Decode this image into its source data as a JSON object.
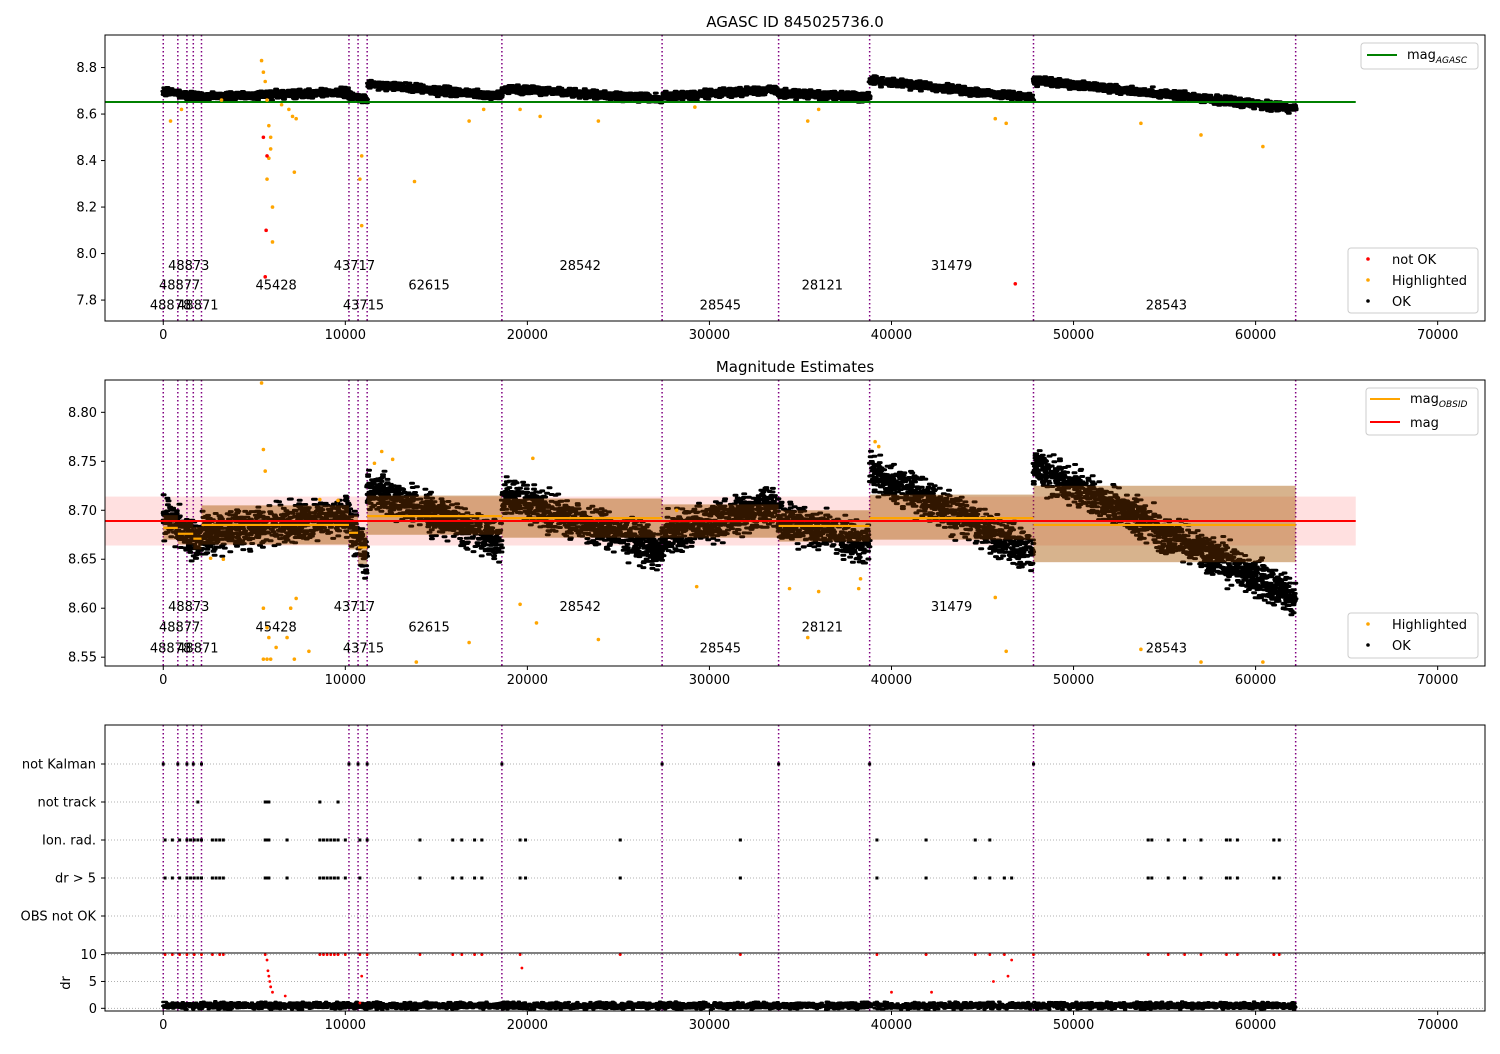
{
  "chart_data": [
    {
      "type": "scatter",
      "title": "AGASC ID 845025736.0",
      "xlim": [
        -3200,
        72600
      ],
      "ylim": [
        7.71,
        8.94
      ],
      "x_ticks": [
        0,
        10000,
        20000,
        30000,
        40000,
        50000,
        60000,
        70000
      ],
      "y_ticks": [
        7.8,
        8.0,
        8.2,
        8.4,
        8.6,
        8.8
      ],
      "mag_agasc": 8.652,
      "mag_agasc_xrange": [
        -3200,
        65500
      ],
      "obs_boundaries": [
        0,
        800,
        1300,
        1650,
        2100,
        10200,
        10700,
        11200,
        18600,
        27400,
        33800,
        38800,
        47800,
        62200
      ],
      "obsid_labels": [
        {
          "text": "48873",
          "x": 1400,
          "y": 7.93
        },
        {
          "text": "48877",
          "x": 900,
          "y": 7.845
        },
        {
          "text": "48878",
          "x": 400,
          "y": 7.76
        },
        {
          "text": "48871",
          "x": 1900,
          "y": 7.76
        },
        {
          "text": "45428",
          "x": 6200,
          "y": 7.845
        },
        {
          "text": "43717",
          "x": 10500,
          "y": 7.93
        },
        {
          "text": "43715",
          "x": 11000,
          "y": 7.76
        },
        {
          "text": "62615",
          "x": 14600,
          "y": 7.845
        },
        {
          "text": "28542",
          "x": 22900,
          "y": 7.93
        },
        {
          "text": "28545",
          "x": 30600,
          "y": 7.76
        },
        {
          "text": "28121",
          "x": 36200,
          "y": 7.845
        },
        {
          "text": "31479",
          "x": 43300,
          "y": 7.93
        },
        {
          "text": "28543",
          "x": 55100,
          "y": 7.76
        }
      ],
      "ok_segments": [
        {
          "x": [
            0,
            800
          ],
          "y": [
            8.695,
            8.69
          ]
        },
        {
          "x": [
            800,
            2100
          ],
          "y": [
            8.685,
            8.675
          ]
        },
        {
          "x": [
            2100,
            10200
          ],
          "y": [
            8.675,
            8.695
          ]
        },
        {
          "x": [
            10200,
            11200
          ],
          "y": [
            8.68,
            8.66
          ]
        },
        {
          "x": [
            11200,
            18600
          ],
          "y": [
            8.73,
            8.675
          ]
        },
        {
          "x": [
            18600,
            27400
          ],
          "y": [
            8.71,
            8.665
          ]
        },
        {
          "x": [
            27400,
            33800
          ],
          "y": [
            8.675,
            8.705
          ]
        },
        {
          "x": [
            33800,
            38800
          ],
          "y": [
            8.69,
            8.67
          ]
        },
        {
          "x": [
            38800,
            47800
          ],
          "y": [
            8.745,
            8.67
          ]
        },
        {
          "x": [
            47800,
            62200
          ],
          "y": [
            8.745,
            8.625
          ]
        }
      ],
      "highlighted_points": [
        [
          5400,
          8.83
        ],
        [
          5500,
          8.78
        ],
        [
          5600,
          8.74
        ],
        [
          5700,
          8.66
        ],
        [
          5800,
          8.55
        ],
        [
          5900,
          8.45
        ],
        [
          6000,
          8.2
        ],
        [
          5800,
          8.41
        ],
        [
          5900,
          8.5
        ],
        [
          6000,
          8.05
        ],
        [
          5700,
          8.32
        ],
        [
          7200,
          8.35
        ],
        [
          6500,
          8.64
        ],
        [
          6900,
          8.62
        ],
        [
          7100,
          8.59
        ],
        [
          7300,
          8.58
        ],
        [
          10900,
          8.42
        ],
        [
          10800,
          8.32
        ],
        [
          10900,
          8.12
        ],
        [
          13800,
          8.31
        ],
        [
          16800,
          8.57
        ],
        [
          17600,
          8.62
        ],
        [
          19600,
          8.62
        ],
        [
          20700,
          8.59
        ],
        [
          23900,
          8.57
        ],
        [
          29200,
          8.63
        ],
        [
          35400,
          8.57
        ],
        [
          36000,
          8.62
        ],
        [
          45700,
          8.58
        ],
        [
          46300,
          8.56
        ],
        [
          53700,
          8.56
        ],
        [
          57000,
          8.51
        ],
        [
          60400,
          8.46
        ],
        [
          1000,
          8.62
        ],
        [
          3200,
          8.66
        ],
        [
          400,
          8.57
        ]
      ],
      "not_ok_points": [
        [
          5500,
          8.5
        ],
        [
          5700,
          8.42
        ],
        [
          5650,
          8.1
        ],
        [
          5600,
          7.9
        ],
        [
          46800,
          7.87
        ]
      ],
      "legend_lines": [
        {
          "label": "mag",
          "sub": "AGASC",
          "color": "#008000"
        }
      ],
      "legend_points": [
        {
          "label": "not OK",
          "color": "#ff0000"
        },
        {
          "label": "Highlighted",
          "color": "#ffa500"
        },
        {
          "label": "OK",
          "color": "#000000"
        }
      ]
    },
    {
      "type": "scatter",
      "title": "Magnitude Estimates",
      "xlim": [
        -3200,
        72600
      ],
      "ylim": [
        8.541,
        8.833
      ],
      "x_ticks": [
        0,
        10000,
        20000,
        30000,
        40000,
        50000,
        60000,
        70000
      ],
      "y_ticks": [
        8.55,
        8.6,
        8.65,
        8.7,
        8.75,
        8.8
      ],
      "mag": 8.689,
      "mag_band": [
        8.664,
        8.714
      ],
      "mag_xrange": [
        -3200,
        65500
      ],
      "obsid_mag_segments": [
        {
          "x": [
            0,
            800
          ],
          "y": 8.682,
          "band": [
            8.67,
            8.695
          ]
        },
        {
          "x": [
            800,
            1650
          ],
          "y": 8.676,
          "band": [
            8.665,
            8.688
          ]
        },
        {
          "x": [
            1650,
            2100
          ],
          "y": 8.671,
          "band": [
            8.66,
            8.683
          ]
        },
        {
          "x": [
            2100,
            10200
          ],
          "y": 8.685,
          "band": [
            8.665,
            8.705
          ]
        },
        {
          "x": [
            10200,
            10700
          ],
          "y": 8.677,
          "band": [
            8.66,
            8.695
          ]
        },
        {
          "x": [
            10700,
            11200
          ],
          "y": 8.662,
          "band": [
            8.645,
            8.68
          ]
        },
        {
          "x": [
            11200,
            18600
          ],
          "y": 8.694,
          "band": [
            8.675,
            8.715
          ]
        },
        {
          "x": [
            18600,
            27400
          ],
          "y": 8.692,
          "band": [
            8.672,
            8.712
          ]
        },
        {
          "x": [
            27400,
            33800
          ],
          "y": 8.689,
          "band": [
            8.672,
            8.706
          ]
        },
        {
          "x": [
            33800,
            38800
          ],
          "y": 8.684,
          "band": [
            8.668,
            8.7
          ]
        },
        {
          "x": [
            38800,
            47800
          ],
          "y": 8.692,
          "band": [
            8.67,
            8.716
          ]
        },
        {
          "x": [
            47800,
            62200
          ],
          "y": 8.685,
          "band": [
            8.647,
            8.725
          ]
        }
      ],
      "ok_segments": [
        {
          "x": [
            0,
            800
          ],
          "y": [
            8.695,
            8.685
          ]
        },
        {
          "x": [
            800,
            2100
          ],
          "y": [
            8.68,
            8.665
          ]
        },
        {
          "x": [
            2100,
            10200
          ],
          "y": [
            8.675,
            8.695
          ]
        },
        {
          "x": [
            10200,
            10700
          ],
          "y": [
            8.685,
            8.675
          ]
        },
        {
          "x": [
            10700,
            11200
          ],
          "y": [
            8.67,
            8.645
          ]
        },
        {
          "x": [
            11200,
            18600
          ],
          "y": [
            8.725,
            8.665
          ]
        },
        {
          "x": [
            18600,
            27400
          ],
          "y": [
            8.715,
            8.66
          ]
        },
        {
          "x": [
            27400,
            33800
          ],
          "y": [
            8.675,
            8.705
          ]
        },
        {
          "x": [
            33800,
            38800
          ],
          "y": [
            8.69,
            8.665
          ]
        },
        {
          "x": [
            38800,
            47800
          ],
          "y": [
            8.74,
            8.655
          ]
        },
        {
          "x": [
            47800,
            62200
          ],
          "y": [
            8.745,
            8.61
          ]
        }
      ],
      "highlighted_points": [
        [
          5400,
          8.83
        ],
        [
          5500,
          8.762
        ],
        [
          5600,
          8.74
        ],
        [
          5500,
          8.6
        ],
        [
          5700,
          8.58
        ],
        [
          5800,
          8.57
        ],
        [
          6200,
          8.56
        ],
        [
          7000,
          8.6
        ],
        [
          7300,
          8.61
        ],
        [
          6800,
          8.57
        ],
        [
          5500,
          8.548
        ],
        [
          5700,
          8.548
        ],
        [
          5900,
          8.548
        ],
        [
          7200,
          8.548
        ],
        [
          8000,
          8.556
        ],
        [
          11600,
          8.748
        ],
        [
          12000,
          8.76
        ],
        [
          12600,
          8.752
        ],
        [
          16800,
          8.565
        ],
        [
          19600,
          8.604
        ],
        [
          20500,
          8.585
        ],
        [
          20300,
          8.753
        ],
        [
          23900,
          8.568
        ],
        [
          28200,
          8.7
        ],
        [
          29300,
          8.622
        ],
        [
          34400,
          8.62
        ],
        [
          35400,
          8.57
        ],
        [
          36000,
          8.617
        ],
        [
          38200,
          8.62
        ],
        [
          38300,
          8.63
        ],
        [
          39100,
          8.77
        ],
        [
          39300,
          8.765
        ],
        [
          45700,
          8.611
        ],
        [
          46300,
          8.556
        ],
        [
          53700,
          8.558
        ],
        [
          3300,
          8.65
        ],
        [
          2600,
          8.651
        ],
        [
          9600,
          8.71
        ],
        [
          8600,
          8.711
        ],
        [
          13900,
          8.545
        ],
        [
          57000,
          8.545
        ],
        [
          60400,
          8.545
        ]
      ],
      "legend_lines": [
        {
          "label": "mag",
          "sub": "OBSID",
          "color": "#ffa500"
        },
        {
          "label": "mag",
          "sub": "",
          "color": "#ff0000"
        }
      ],
      "legend_points": [
        {
          "label": "Highlighted",
          "color": "#ffa500"
        },
        {
          "label": "OK",
          "color": "#000000"
        }
      ]
    },
    {
      "type": "scatter",
      "title": "",
      "xlim": [
        -3200,
        72600
      ],
      "x_ticks": [
        0,
        10000,
        20000,
        30000,
        40000,
        50000,
        60000,
        70000
      ],
      "flag_rows": [
        "not Kalman",
        "not track",
        "Ion. rad.",
        "dr > 5",
        "OBS not OK"
      ],
      "flag_points": {
        "not Kalman": [
          0,
          800,
          1300,
          1650,
          2100,
          10200,
          10700,
          11200,
          18600,
          27400,
          33800,
          38800,
          47800
        ],
        "not track": [
          1900,
          5600,
          5700,
          5800,
          8600,
          9600
        ],
        "Ion. rad.": [
          100,
          500,
          900,
          1300,
          1500,
          1700,
          1900,
          2100,
          2700,
          2900,
          3100,
          3300,
          5600,
          5700,
          5800,
          6800,
          8600,
          8800,
          9000,
          9200,
          9400,
          9600,
          10000,
          10800,
          11200,
          14100,
          15900,
          16400,
          17100,
          17500,
          19600,
          19900,
          25100,
          31700,
          39200,
          41900,
          44600,
          45400,
          54100,
          54300,
          55200,
          56100,
          57000,
          58400,
          58600,
          59000,
          61000,
          61300
        ],
        "dr > 5": [
          100,
          500,
          900,
          1300,
          1500,
          1700,
          1900,
          2100,
          2700,
          2900,
          3100,
          3300,
          5600,
          5700,
          5800,
          6800,
          8600,
          8800,
          9000,
          9200,
          9400,
          9600,
          10000,
          10800,
          14100,
          15900,
          16400,
          17100,
          17500,
          19600,
          19900,
          25100,
          31700,
          39200,
          41900,
          44600,
          45400,
          46200,
          46600,
          54100,
          54300,
          55200,
          56100,
          57000,
          58400,
          58600,
          59000,
          61000,
          61300
        ],
        "OBS not OK": []
      },
      "dr_ylabel": "dr",
      "dr_ylim": [
        -0.5,
        10.3
      ],
      "dr_y_ticks": [
        0,
        5,
        10
      ],
      "dr_gridlines": [
        0,
        5,
        10
      ],
      "dr_high_points": [
        [
          100,
          10
        ],
        [
          500,
          10
        ],
        [
          900,
          10
        ],
        [
          1300,
          10
        ],
        [
          1700,
          10
        ],
        [
          2100,
          10
        ],
        [
          2700,
          10
        ],
        [
          3100,
          10
        ],
        [
          3300,
          10
        ],
        [
          5600,
          10
        ],
        [
          5700,
          9
        ],
        [
          5750,
          7
        ],
        [
          5800,
          6
        ],
        [
          5850,
          5
        ],
        [
          5900,
          4
        ],
        [
          6000,
          3
        ],
        [
          8600,
          10
        ],
        [
          8800,
          10
        ],
        [
          9000,
          10
        ],
        [
          9200,
          10
        ],
        [
          9400,
          10
        ],
        [
          9600,
          10
        ],
        [
          10000,
          10
        ],
        [
          10800,
          10
        ],
        [
          10900,
          6
        ],
        [
          11200,
          10
        ],
        [
          14100,
          10
        ],
        [
          15900,
          10
        ],
        [
          16400,
          10
        ],
        [
          17100,
          10
        ],
        [
          17500,
          10
        ],
        [
          19600,
          10
        ],
        [
          19700,
          7.5
        ],
        [
          25100,
          10
        ],
        [
          31700,
          10
        ],
        [
          39200,
          10
        ],
        [
          41900,
          10
        ],
        [
          44600,
          10
        ],
        [
          45400,
          10
        ],
        [
          46200,
          10
        ],
        [
          46600,
          9
        ],
        [
          47800,
          10
        ],
        [
          54100,
          10
        ],
        [
          55200,
          10
        ],
        [
          56100,
          10
        ],
        [
          57000,
          10
        ],
        [
          58400,
          10
        ],
        [
          59000,
          10
        ],
        [
          61000,
          10
        ],
        [
          61300,
          10
        ],
        [
          6700,
          2.3
        ],
        [
          10800,
          1
        ],
        [
          40000,
          3
        ],
        [
          42200,
          3
        ],
        [
          45600,
          5
        ],
        [
          46400,
          6
        ]
      ]
    }
  ]
}
